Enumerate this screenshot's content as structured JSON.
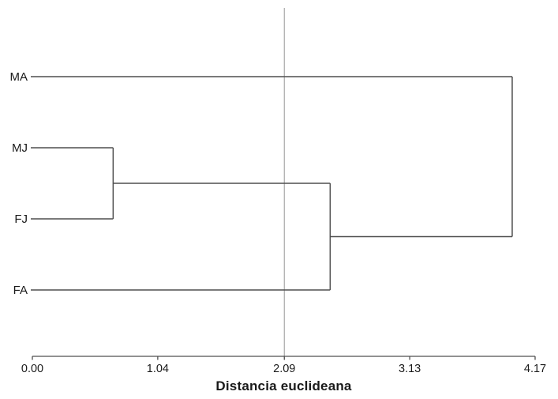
{
  "chart_data": {
    "type": "dendrogram",
    "orientation": "horizontal",
    "title": "",
    "xlabel": "Distancia euclideana",
    "leaves": [
      "MA",
      "MJ",
      "FJ",
      "FA"
    ],
    "xlim": [
      0,
      4.17
    ],
    "x_ticks": [
      0.0,
      1.04,
      2.09,
      3.13,
      4.17
    ],
    "x_tick_labels": [
      "0.00",
      "1.04",
      "2.09",
      "3.13",
      "4.17"
    ],
    "reference_line_x": 2.09,
    "merges": [
      {
        "clusters": [
          [
            "MJ"
          ],
          [
            "FJ"
          ]
        ],
        "distance": 0.67
      },
      {
        "clusters": [
          [
            "MJ",
            "FJ"
          ],
          [
            "FA"
          ]
        ],
        "distance": 2.47
      },
      {
        "clusters": [
          [
            "MA"
          ],
          [
            "MJ",
            "FJ",
            "FA"
          ]
        ],
        "distance": 3.98
      }
    ],
    "grid": false,
    "legend": null,
    "colors": {
      "line": "#4f4f4f",
      "reference_line": "#a8a8a8",
      "text": "#1a1a1a",
      "background": "#ffffff"
    }
  }
}
